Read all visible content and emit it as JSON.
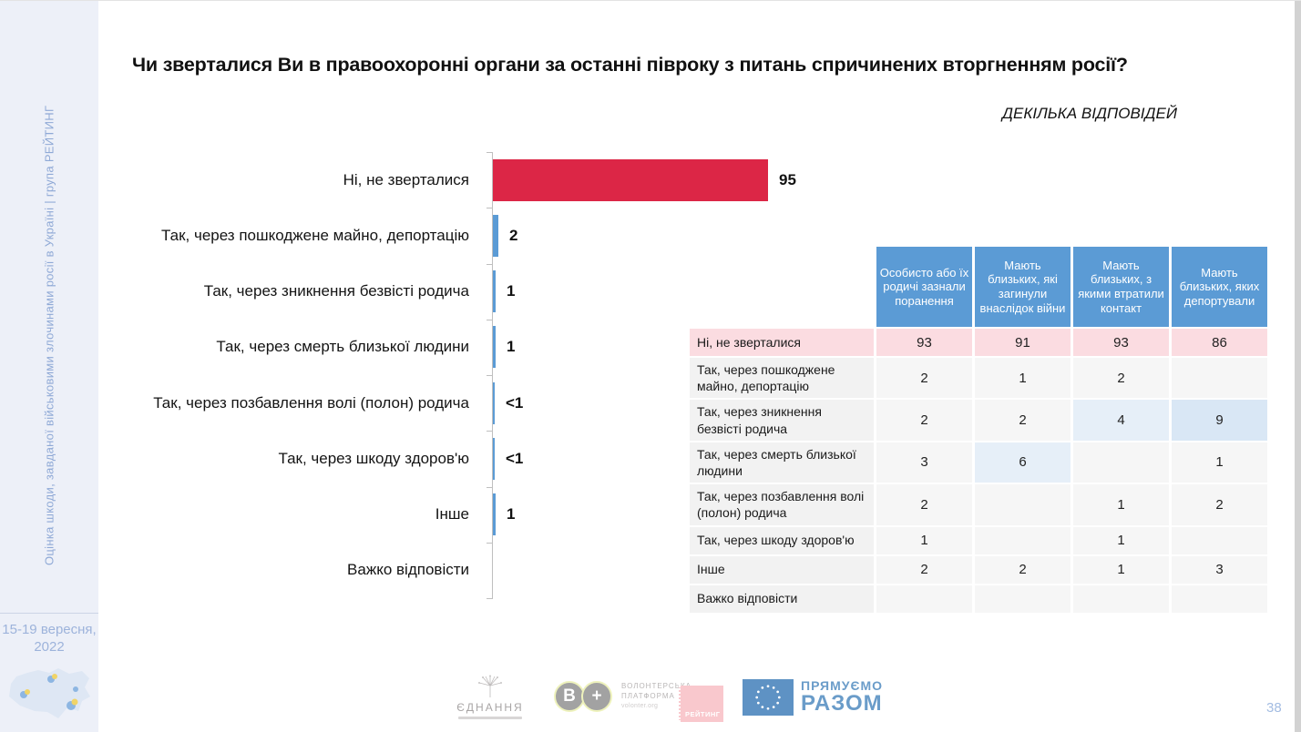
{
  "slide": {
    "title": "Чи зверталися Ви в правоохоронні органи за останні півроку з питань спричинених вторгненням росії?",
    "subtitle": "ДЕКІЛЬКА ВІДПОВІДЕЙ",
    "page_number": "38"
  },
  "sidebar": {
    "vertical_text": "Оцінка шкоди, завданої військовими злочинами росії в Україні | група РЕЙТИНГ",
    "date_line1": "15-19 вересня,",
    "date_line2": "2022"
  },
  "chart_data": {
    "type": "bar",
    "orientation": "horizontal",
    "title": "Чи зверталися Ви в правоохоронні органи за останні півроку з питань спричинених вторгненням росії?",
    "xlabel": "",
    "ylabel": "",
    "xlim": [
      0,
      100
    ],
    "grid": false,
    "categories": [
      "Ні, не зверталися",
      "Так, через пошкоджене майно, депортацію",
      "Так, через зникнення безвісті родича",
      "Так, через смерть близької людини",
      "Так, через позбавлення волі (полон) родича",
      "Так, через шкоду здоров'ю",
      "Інше",
      "Важко відповісти"
    ],
    "values": [
      95,
      2,
      1,
      1,
      0.5,
      0.5,
      1,
      0
    ],
    "value_labels": [
      "95",
      "2",
      "1",
      "1",
      "<1",
      "<1",
      "1",
      ""
    ],
    "bar_colors": [
      "#dc2646",
      "#5b9bd5",
      "#5b9bd5",
      "#5b9bd5",
      "#5b9bd5",
      "#5b9bd5",
      "#5b9bd5",
      "#5b9bd5"
    ]
  },
  "table": {
    "columns": [
      "Особисто або їх родичі зазнали поранення",
      "Мають близьких, які загинули внаслідок війни",
      "Мають близьких, з якими втратили контакт",
      "Мають близьких, яких депортували"
    ],
    "rows": [
      {
        "label": "Ні, не зверталися",
        "values": [
          "93",
          "91",
          "93",
          "86"
        ],
        "row_style": "pink",
        "cell_styles": [
          "",
          "",
          "",
          ""
        ]
      },
      {
        "label": "Так, через  пошкоджене майно, депортацію",
        "values": [
          "2",
          "1",
          "2",
          ""
        ],
        "row_style": "",
        "cell_styles": [
          "",
          "",
          "",
          ""
        ]
      },
      {
        "label": "Так, через зникнення безвісті родича",
        "values": [
          "2",
          "2",
          "4",
          "9"
        ],
        "row_style": "",
        "cell_styles": [
          "",
          "",
          "hl1",
          "hl2"
        ]
      },
      {
        "label": "Так, через смерть близької людини",
        "values": [
          "3",
          "6",
          "",
          "1"
        ],
        "row_style": "",
        "cell_styles": [
          "",
          "hl1",
          "",
          ""
        ]
      },
      {
        "label": "Так, через позбавлення волі (полон) родича",
        "values": [
          "2",
          "",
          "1",
          "2"
        ],
        "row_style": "",
        "cell_styles": [
          "",
          "",
          "",
          ""
        ]
      },
      {
        "label": "Так, через шкоду здоров'ю",
        "values": [
          "1",
          "",
          "1",
          ""
        ],
        "row_style": "",
        "cell_styles": [
          "",
          "",
          "",
          ""
        ]
      },
      {
        "label": "Інше",
        "values": [
          "2",
          "2",
          "1",
          "3"
        ],
        "row_style": "",
        "cell_styles": [
          "",
          "",
          "",
          ""
        ]
      },
      {
        "label": "Важко відповісти",
        "values": [
          "",
          "",
          "",
          ""
        ],
        "row_style": "",
        "cell_styles": [
          "",
          "",
          "",
          ""
        ]
      }
    ]
  },
  "logos": {
    "ednannia": {
      "name": "ЄДНАННЯ"
    },
    "volunteer": {
      "circle1": "В",
      "circle2": "+",
      "line1": "ВОЛОНТЕРСЬКА",
      "line2": "ПЛАТФОРМА",
      "url": "volonter.org"
    },
    "rating": {
      "name": "РЕЙТИНГ"
    },
    "eu": {
      "line1": "ПРЯМУЄМО",
      "line2": "РАЗОМ"
    }
  },
  "colors": {
    "accent_red": "#dc2646",
    "accent_blue": "#5b9bd5",
    "pink_row": "#fbdce1",
    "highlight_light": "#e6eff8",
    "highlight_strong": "#d9e7f5",
    "sidebar_bg": "#edf0f8",
    "sidebar_text": "#8fa9d6"
  }
}
